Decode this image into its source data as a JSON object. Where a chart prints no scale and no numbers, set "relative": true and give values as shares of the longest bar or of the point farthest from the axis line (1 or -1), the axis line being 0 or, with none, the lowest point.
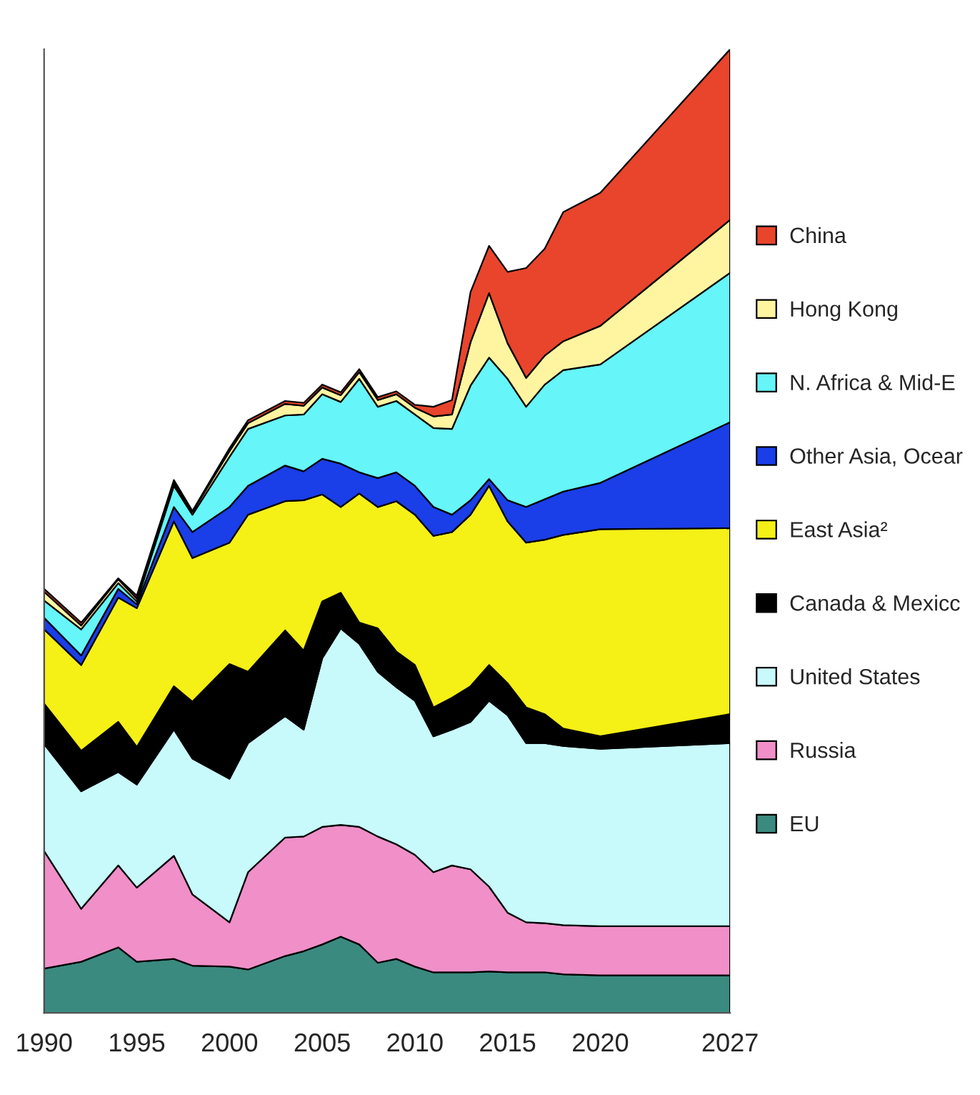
{
  "chart_data": {
    "type": "area",
    "stacked": true,
    "relative": true,
    "legend": "right",
    "grid": false,
    "x": [
      1990,
      1992,
      1994,
      1995,
      1997,
      1998,
      2000,
      2001,
      2003,
      2004,
      2005,
      2006,
      2007,
      2008,
      2009,
      2010,
      2011,
      2012,
      2013,
      2014,
      2015,
      2016,
      2017,
      2018,
      2020,
      2027
    ],
    "xlim": [
      1990,
      2027
    ],
    "xticks": [
      1990,
      1995,
      2000,
      2005,
      2010,
      2015,
      2020,
      2027
    ],
    "series": [
      {
        "name": "EU",
        "color": "#3a8a80",
        "values": [
          0.046,
          0.053,
          0.068,
          0.053,
          0.056,
          0.049,
          0.048,
          0.045,
          0.059,
          0.064,
          0.071,
          0.079,
          0.071,
          0.052,
          0.056,
          0.048,
          0.042,
          0.042,
          0.042,
          0.043,
          0.042,
          0.042,
          0.042,
          0.04,
          0.039,
          0.039
        ]
      },
      {
        "name": "Russia",
        "color": "#f08fc8",
        "values": [
          0.122,
          0.055,
          0.085,
          0.077,
          0.107,
          0.074,
          0.046,
          0.101,
          0.123,
          0.119,
          0.122,
          0.116,
          0.122,
          0.131,
          0.119,
          0.116,
          0.104,
          0.111,
          0.107,
          0.088,
          0.062,
          0.052,
          0.051,
          0.051,
          0.051,
          0.051
        ]
      },
      {
        "name": "United States",
        "color": "#c8fafc",
        "values": [
          0.111,
          0.122,
          0.097,
          0.107,
          0.131,
          0.141,
          0.149,
          0.134,
          0.126,
          0.111,
          0.175,
          0.204,
          0.19,
          0.171,
          0.163,
          0.16,
          0.141,
          0.141,
          0.153,
          0.193,
          0.205,
          0.186,
          0.187,
          0.186,
          0.184,
          0.19
        ]
      },
      {
        "name": "Canada & Mexicc",
        "color": "#000000",
        "values": [
          0.042,
          0.042,
          0.052,
          0.039,
          0.045,
          0.059,
          0.119,
          0.074,
          0.089,
          0.082,
          0.059,
          0.037,
          0.022,
          0.045,
          0.037,
          0.037,
          0.03,
          0.033,
          0.037,
          0.037,
          0.033,
          0.037,
          0.03,
          0.018,
          0.013,
          0.03
        ]
      },
      {
        "name": "East Asia²",
        "color": "#f5f016",
        "values": [
          0.077,
          0.089,
          0.129,
          0.144,
          0.171,
          0.149,
          0.126,
          0.163,
          0.134,
          0.156,
          0.111,
          0.089,
          0.134,
          0.126,
          0.156,
          0.156,
          0.178,
          0.172,
          0.178,
          0.186,
          0.168,
          0.171,
          0.181,
          0.201,
          0.215,
          0.193
        ]
      },
      {
        "name": "Other Asia, Ocear",
        "color": "#1a3ee8",
        "values": [
          0.012,
          0.01,
          0.009,
          0.004,
          0.015,
          0.027,
          0.037,
          0.03,
          0.037,
          0.03,
          0.037,
          0.045,
          0.022,
          0.03,
          0.03,
          0.03,
          0.03,
          0.018,
          0.015,
          0.007,
          0.022,
          0.037,
          0.042,
          0.045,
          0.048,
          0.11
        ]
      },
      {
        "name": "N. Africa & Mid-E",
        "color": "#66f5f8",
        "values": [
          0.018,
          0.027,
          0.006,
          0.003,
          0.022,
          0.018,
          0.052,
          0.059,
          0.052,
          0.059,
          0.067,
          0.064,
          0.097,
          0.074,
          0.074,
          0.074,
          0.082,
          0.089,
          0.119,
          0.126,
          0.126,
          0.104,
          0.119,
          0.126,
          0.123,
          0.155
        ]
      },
      {
        "name": "Hong Kong",
        "color": "#fff5a0",
        "values": [
          0.009,
          0.004,
          0.004,
          0.003,
          0.003,
          0.003,
          0.006,
          0.006,
          0.012,
          0.009,
          0.007,
          0.007,
          0.007,
          0.007,
          0.007,
          0.007,
          0.012,
          0.015,
          0.045,
          0.067,
          0.037,
          0.03,
          0.03,
          0.03,
          0.04,
          0.055
        ]
      },
      {
        "name": "China",
        "color": "#e8452c",
        "values": [
          0.003,
          0.003,
          0.001,
          0.003,
          0.003,
          0.001,
          0.003,
          0.003,
          0.003,
          0.003,
          0.003,
          0.003,
          0.003,
          0.003,
          0.003,
          0.003,
          0.01,
          0.015,
          0.052,
          0.049,
          0.074,
          0.114,
          0.111,
          0.134,
          0.138,
          0.177
        ]
      }
    ]
  }
}
